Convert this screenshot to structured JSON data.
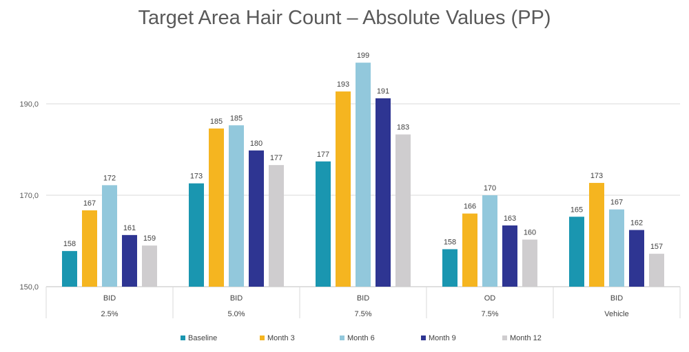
{
  "chart_data": {
    "type": "bar",
    "title": "Target Area Hair Count – Absolute Values (PP)",
    "xlabel": "",
    "ylabel": "",
    "ylim": [
      150,
      200
    ],
    "yticks": [
      150,
      170,
      190
    ],
    "ytick_labels": [
      "150,0",
      "170,0",
      "190,0"
    ],
    "grid": true,
    "legend_position": "bottom",
    "categories": [
      {
        "line1": "BID",
        "line2": "2.5%"
      },
      {
        "line1": "BID",
        "line2": "5.0%"
      },
      {
        "line1": "BID",
        "line2": "7.5%"
      },
      {
        "line1": "OD",
        "line2": "7.5%"
      },
      {
        "line1": "BID",
        "line2": "Vehicle"
      }
    ],
    "series": [
      {
        "name": "Baseline",
        "color": "#1a96b0",
        "values": [
          158,
          173,
          177,
          158,
          165
        ]
      },
      {
        "name": "Month 3",
        "color": "#f5b520",
        "values": [
          167,
          185,
          193,
          166,
          173
        ]
      },
      {
        "name": "Month 6",
        "color": "#92c8dc",
        "values": [
          172,
          185,
          199,
          170,
          167
        ]
      },
      {
        "name": "Month 9",
        "color": "#2e3592",
        "values": [
          161,
          180,
          191,
          163,
          162
        ]
      },
      {
        "name": "Month 12",
        "color": "#cfcdcf",
        "values": [
          159,
          177,
          183,
          160,
          157
        ]
      }
    ],
    "plot_values": [
      [
        157.8,
        172.6,
        177.4,
        158.2,
        165.3
      ],
      [
        166.7,
        184.6,
        192.7,
        166.0,
        172.7
      ],
      [
        172.2,
        185.3,
        199.0,
        170.0,
        166.9
      ],
      [
        161.3,
        179.8,
        191.2,
        163.4,
        162.4
      ],
      [
        159.0,
        176.6,
        183.3,
        160.3,
        157.2
      ]
    ]
  }
}
